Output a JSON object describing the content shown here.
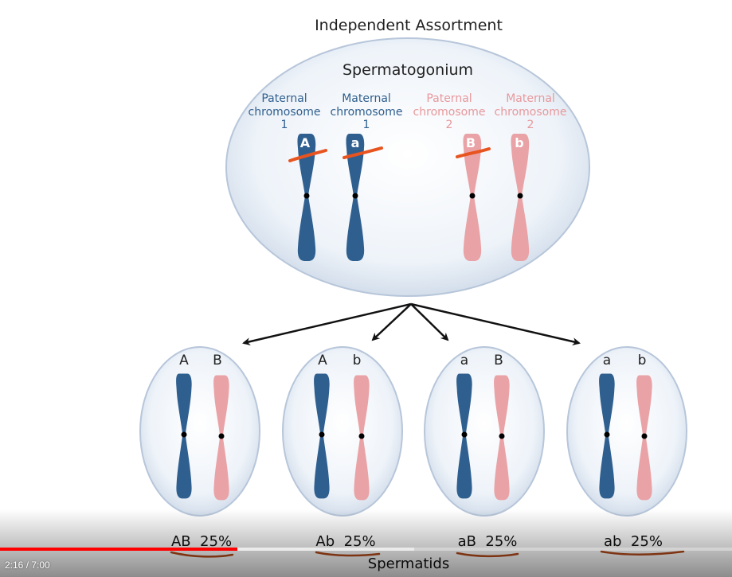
{
  "diagram": {
    "title": "Independent Assortment",
    "parent_cell_label": "Spermatogonium",
    "chromosome_labels": [
      {
        "line1": "Paternal",
        "line2": "chromosome",
        "line3": "1"
      },
      {
        "line1": "Maternal",
        "line2": "chromosome",
        "line3": "1"
      },
      {
        "line1": "Paternal",
        "line2": "chromosome",
        "line3": "2"
      },
      {
        "line1": "Maternal",
        "line2": "chromosome",
        "line3": "2"
      }
    ],
    "parent_alleles": [
      "A",
      "a",
      "B",
      "b"
    ],
    "spermatids": [
      {
        "allele1": "A",
        "allele2": "B",
        "result": "AB  25%"
      },
      {
        "allele1": "A",
        "allele2": "b",
        "result": "Ab  25%"
      },
      {
        "allele1": "a",
        "allele2": "B",
        "result": "aB  25%"
      },
      {
        "allele1": "a",
        "allele2": "b",
        "result": "ab  25%"
      }
    ],
    "bottom_label": "Spermatids",
    "colors": {
      "blue": "#2f5f8f",
      "pink": "#e9a2a6",
      "annotation": "#e8541f"
    }
  },
  "player": {
    "time_display": "2:16 / 7:00",
    "progress_fraction": 0.3238
  }
}
